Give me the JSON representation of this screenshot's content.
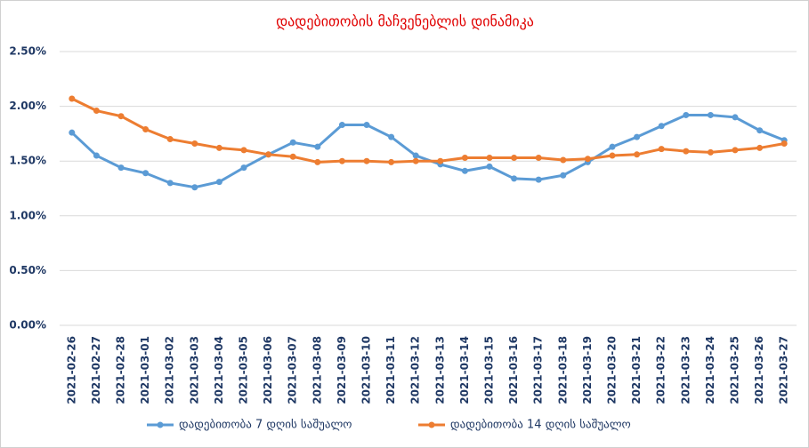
{
  "chart_data": {
    "type": "line",
    "title": "დადებითობის მაჩვენებლის დინამიკა",
    "categories": [
      "2021-02-26",
      "2021-02-27",
      "2021-02-28",
      "2021-03-01",
      "2021-03-02",
      "2021-03-03",
      "2021-03-04",
      "2021-03-05",
      "2021-03-06",
      "2021-03-07",
      "2021-03-08",
      "2021-03-09",
      "2021-03-10",
      "2021-03-11",
      "2021-03-12",
      "2021-03-13",
      "2021-03-14",
      "2021-03-15",
      "2021-03-16",
      "2021-03-17",
      "2021-03-18",
      "2021-03-19",
      "2021-03-20",
      "2021-03-21",
      "2021-03-22",
      "2021-03-23",
      "2021-03-24",
      "2021-03-25",
      "2021-03-26",
      "2021-03-27"
    ],
    "series": [
      {
        "name": "დადებითობა 7 დღის საშუალო",
        "color": "#5b9bd5",
        "values": [
          1.76,
          1.55,
          1.44,
          1.39,
          1.3,
          1.26,
          1.31,
          1.44,
          1.56,
          1.67,
          1.63,
          1.83,
          1.83,
          1.72,
          1.55,
          1.47,
          1.41,
          1.45,
          1.34,
          1.33,
          1.37,
          1.49,
          1.63,
          1.72,
          1.82,
          1.92,
          1.92,
          1.9,
          1.78,
          1.69
        ]
      },
      {
        "name": "დადებითობა 14 დღის საშუალო",
        "color": "#ed7d31",
        "values": [
          2.07,
          1.96,
          1.91,
          1.79,
          1.7,
          1.66,
          1.62,
          1.6,
          1.56,
          1.54,
          1.49,
          1.5,
          1.5,
          1.49,
          1.5,
          1.5,
          1.53,
          1.53,
          1.53,
          1.53,
          1.51,
          1.52,
          1.55,
          1.56,
          1.61,
          1.59,
          1.58,
          1.6,
          1.62,
          1.66
        ]
      }
    ],
    "ylim": [
      0,
      2.5
    ],
    "yticks": [
      {
        "value": 0,
        "label": "0.00%"
      },
      {
        "value": 0.5,
        "label": "0.50%"
      },
      {
        "value": 1,
        "label": "1.00%"
      },
      {
        "value": 1.5,
        "label": "1.50%"
      },
      {
        "value": 2,
        "label": "2.00%"
      },
      {
        "value": 2.5,
        "label": "2.50%"
      }
    ],
    "grid": true
  }
}
